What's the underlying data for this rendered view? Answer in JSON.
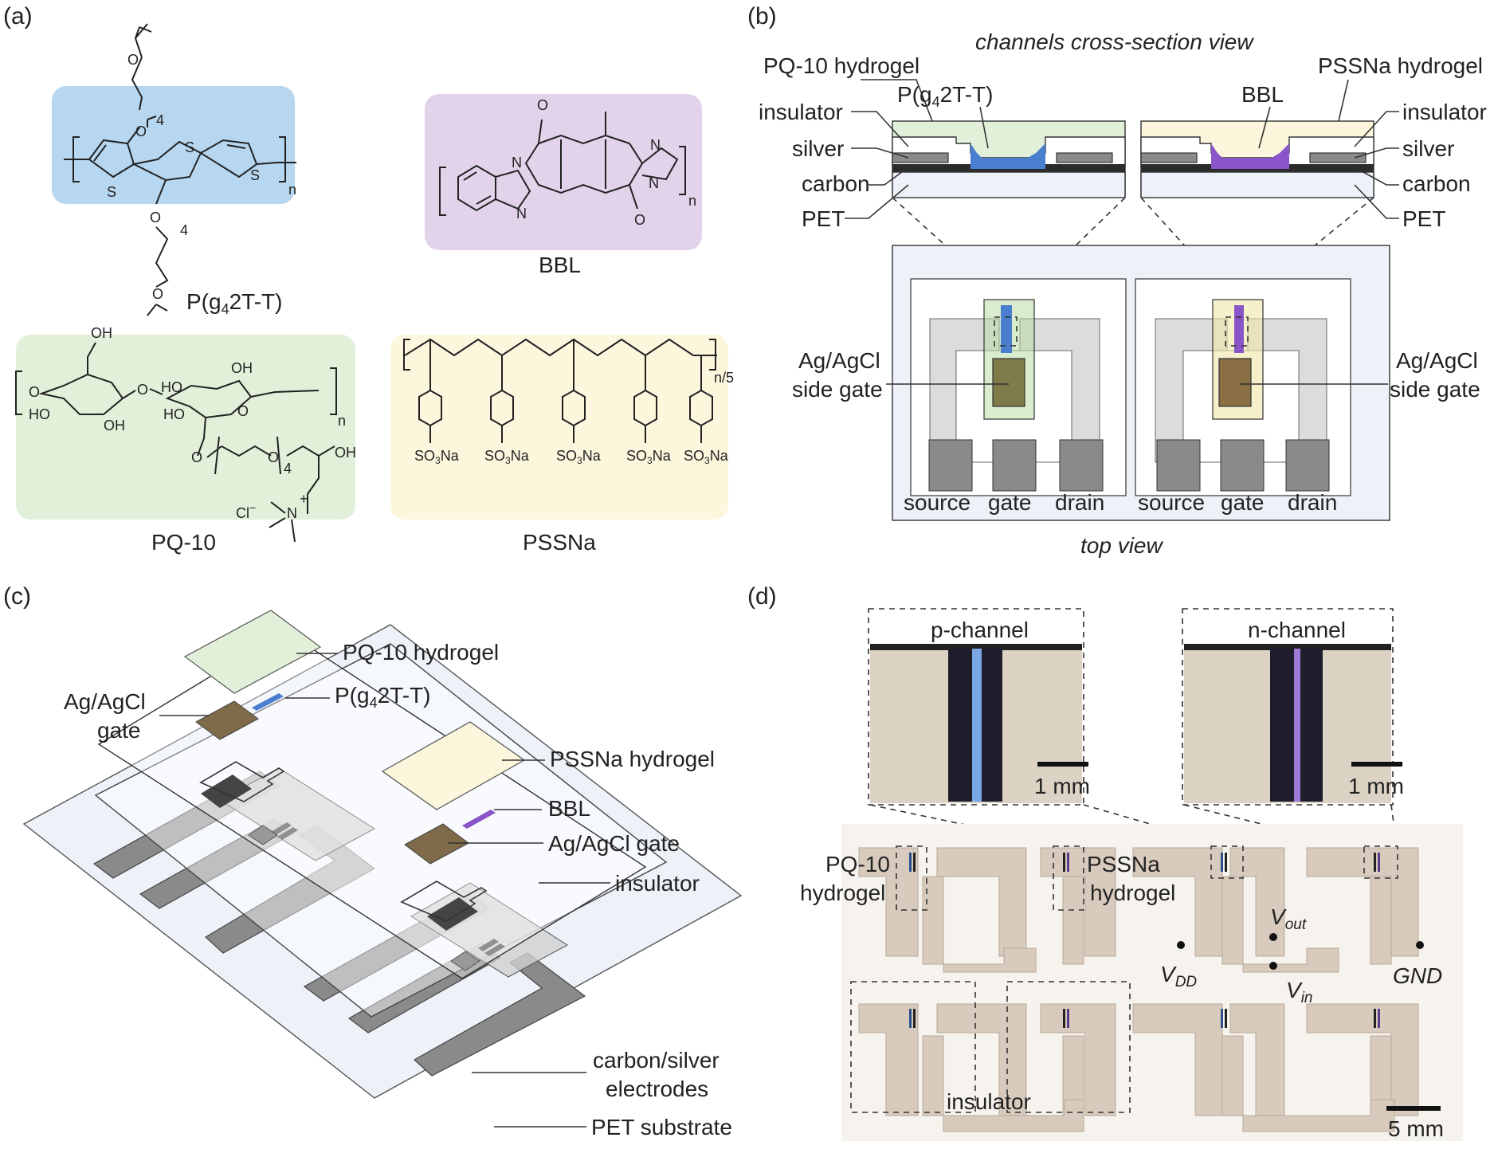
{
  "panels": {
    "a": {
      "label": "(a)",
      "pg42tt": "P(g",
      "pg42tt_sub": "4",
      "pg42tt_tail": "2T-T)",
      "bbl": "BBL",
      "pq10": "PQ-10",
      "pssna": "PSSNa",
      "atoms": {
        "O": "O",
        "S": "S",
        "N": "N",
        "OH": "OH",
        "HO": "HO",
        "n": "n",
        "four": "4",
        "n5": "n/5",
        "cl": "Cl",
        "minus": "−",
        "plus": "+",
        "so3na_a": "SO",
        "so3na_3": "3",
        "so3na_b": "Na"
      }
    },
    "b": {
      "label": "(b)",
      "cross_title": "channels cross-section view",
      "top_title": "top view",
      "left": {
        "hydrogel": "PQ-10 hydrogel",
        "polymer_a": "P(g",
        "polymer_sub": "4",
        "polymer_b": "2T-T)",
        "insulator": "insulator",
        "silver": "silver",
        "carbon": "carbon",
        "pet": "PET",
        "gate_l1": "Ag/AgCl",
        "gate_l2": "side gate"
      },
      "right": {
        "hydrogel": "PSSNa hydrogel",
        "polymer": "BBL",
        "insulator": "insulator",
        "silver": "silver",
        "carbon": "carbon",
        "pet": "PET",
        "gate_l1": "Ag/AgCl",
        "gate_l2": "side gate"
      },
      "terminals": [
        "source",
        "gate",
        "drain",
        "source",
        "gate",
        "drain"
      ]
    },
    "c": {
      "label": "(c)",
      "pq10_hydrogel": "PQ-10 hydrogel",
      "polymer_a": "P(g",
      "polymer_sub": "4",
      "polymer_b": "2T-T)",
      "gate1_l1": "Ag/AgCl",
      "gate1_l2": "gate",
      "pssna_hydrogel": "PSSNa hydrogel",
      "bbl": "BBL",
      "gate2": "Ag/AgCl gate",
      "insulator": "insulator",
      "electrodes_l1": "carbon/silver",
      "electrodes_l2": "electrodes",
      "substrate": "PET substrate"
    },
    "d": {
      "label": "(d)",
      "p_channel": "p-channel",
      "n_channel": "n-channel",
      "scale_1mm": "1 mm",
      "scale_5mm": "5 mm",
      "pq10_l1": "PQ-10",
      "pq10_l2": "hydrogel",
      "pssna_l1": "PSSNa",
      "pssna_l2": "hydrogel",
      "v": "V",
      "vout_sub": "out",
      "vdd_sub": "DD",
      "vin_sub": "in",
      "gnd": "GND",
      "insulator": "insulator"
    }
  },
  "colors": {
    "blue_poly": "#4a7fd0",
    "blue_fill": "#b7d6ef",
    "purple_poly": "#8a55c8",
    "purple_fill": "#e2d3ea",
    "green_fill": "#e2f0da",
    "yellow_fill": "#fbf6dc",
    "gate_brown": "#7f6b4a",
    "electrode_dark": "#8a8a8a",
    "substrate": "#edf2f9"
  }
}
